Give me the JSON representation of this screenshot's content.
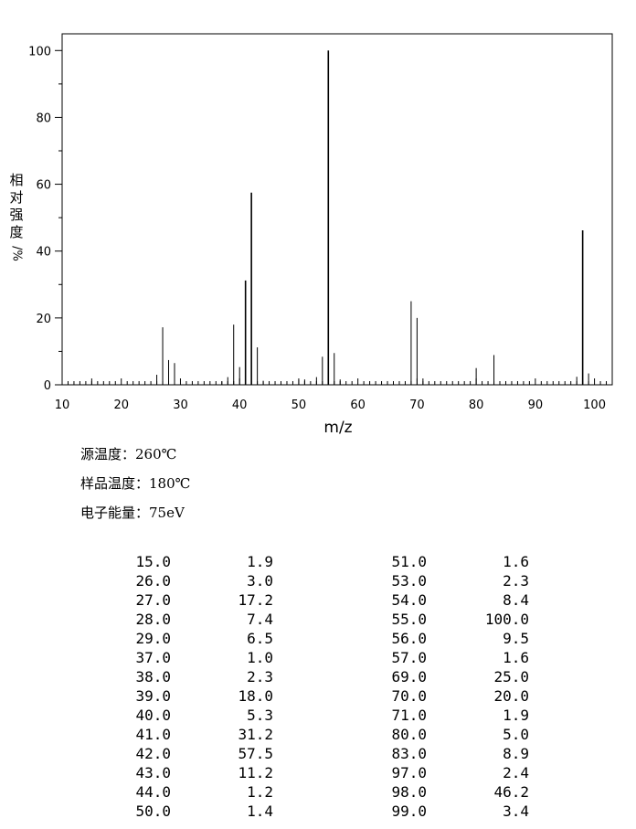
{
  "chart_data": {
    "type": "bar",
    "ylabel_chars": [
      "相",
      "对",
      "强",
      "度",
      "/%"
    ],
    "xlabel": "m/z",
    "xlim": [
      10,
      103
    ],
    "ylim": [
      0,
      105
    ],
    "x_ticks": [
      "10",
      "20",
      "30",
      "40",
      "50",
      "60",
      "70",
      "80",
      "90",
      "100"
    ],
    "y_ticks": [
      "0",
      "20",
      "40",
      "60",
      "80",
      "100"
    ],
    "peaks": [
      {
        "mz": 15.0,
        "intensity": 1.9
      },
      {
        "mz": 26.0,
        "intensity": 3.0
      },
      {
        "mz": 27.0,
        "intensity": 17.2
      },
      {
        "mz": 28.0,
        "intensity": 7.4
      },
      {
        "mz": 29.0,
        "intensity": 6.5
      },
      {
        "mz": 37.0,
        "intensity": 1.0
      },
      {
        "mz": 38.0,
        "intensity": 2.3
      },
      {
        "mz": 39.0,
        "intensity": 18.0
      },
      {
        "mz": 40.0,
        "intensity": 5.3
      },
      {
        "mz": 41.0,
        "intensity": 31.2
      },
      {
        "mz": 42.0,
        "intensity": 57.5
      },
      {
        "mz": 43.0,
        "intensity": 11.2
      },
      {
        "mz": 44.0,
        "intensity": 1.2
      },
      {
        "mz": 50.0,
        "intensity": 1.4
      },
      {
        "mz": 51.0,
        "intensity": 1.6
      },
      {
        "mz": 53.0,
        "intensity": 2.3
      },
      {
        "mz": 54.0,
        "intensity": 8.4
      },
      {
        "mz": 55.0,
        "intensity": 100.0
      },
      {
        "mz": 56.0,
        "intensity": 9.5
      },
      {
        "mz": 57.0,
        "intensity": 1.6
      },
      {
        "mz": 69.0,
        "intensity": 25.0
      },
      {
        "mz": 70.0,
        "intensity": 20.0
      },
      {
        "mz": 71.0,
        "intensity": 1.9
      },
      {
        "mz": 80.0,
        "intensity": 5.0
      },
      {
        "mz": 83.0,
        "intensity": 8.9
      },
      {
        "mz": 97.0,
        "intensity": 2.4
      },
      {
        "mz": 98.0,
        "intensity": 46.2
      },
      {
        "mz": 99.0,
        "intensity": 3.4
      }
    ]
  },
  "conditions": {
    "source_temp": "源温度：260℃",
    "sample_temp": "样品温度：180℃",
    "electron_energy": "电子能量：75eV"
  },
  "peak_table": {
    "left": [
      [
        "15.0",
        "1.9"
      ],
      [
        "26.0",
        "3.0"
      ],
      [
        "27.0",
        "17.2"
      ],
      [
        "28.0",
        "7.4"
      ],
      [
        "29.0",
        "6.5"
      ],
      [
        "37.0",
        "1.0"
      ],
      [
        "38.0",
        "2.3"
      ],
      [
        "39.0",
        "18.0"
      ],
      [
        "40.0",
        "5.3"
      ],
      [
        "41.0",
        "31.2"
      ],
      [
        "42.0",
        "57.5"
      ],
      [
        "43.0",
        "11.2"
      ],
      [
        "44.0",
        "1.2"
      ],
      [
        "50.0",
        "1.4"
      ]
    ],
    "right": [
      [
        "51.0",
        "1.6"
      ],
      [
        "53.0",
        "2.3"
      ],
      [
        "54.0",
        "8.4"
      ],
      [
        "55.0",
        "100.0"
      ],
      [
        "56.0",
        "9.5"
      ],
      [
        "57.0",
        "1.6"
      ],
      [
        "69.0",
        "25.0"
      ],
      [
        "70.0",
        "20.0"
      ],
      [
        "71.0",
        "1.9"
      ],
      [
        "80.0",
        "5.0"
      ],
      [
        "83.0",
        "8.9"
      ],
      [
        "97.0",
        "2.4"
      ],
      [
        "98.0",
        "46.2"
      ],
      [
        "99.0",
        "3.4"
      ]
    ]
  }
}
